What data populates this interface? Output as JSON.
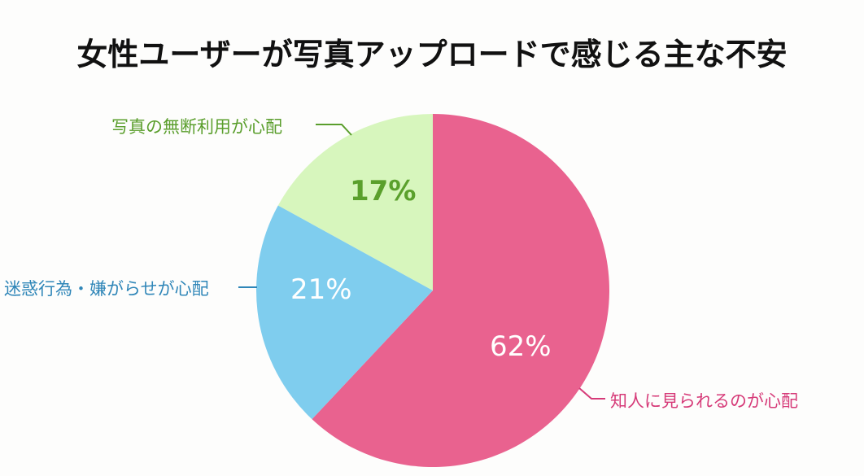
{
  "title": "女性ユーザーが写真アップロードで感じる主な不安",
  "chart_data": {
    "type": "pie",
    "title": "女性ユーザーが写真アップロードで感じる主な不安",
    "categories": [
      "知人に見られるのが心配",
      "迷惑行為・嫌がらせが心配",
      "写真の無断利用が心配"
    ],
    "values": [
      62,
      21,
      17
    ],
    "unit": "%",
    "labels": [
      "62%",
      "21%",
      "17%"
    ],
    "colors": [
      "#e9628f",
      "#7fcdee",
      "#d7f6bd"
    ],
    "label_colors": [
      "#d63a78",
      "#2f86b8",
      "#5a9e2c"
    ],
    "value_label_colors": [
      "#ffffff",
      "#ffffff",
      "#5aa02c"
    ],
    "start_angle_deg": 0,
    "direction": "clockwise",
    "legend": "callout labels with leader lines"
  }
}
